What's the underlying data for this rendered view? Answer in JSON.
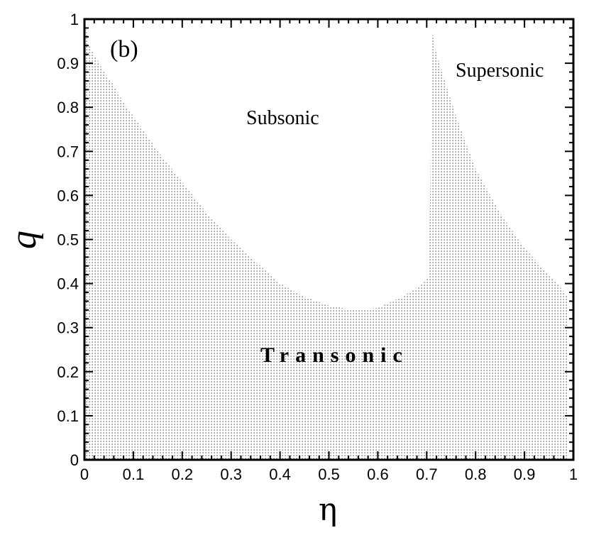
{
  "chart_data": {
    "type": "area",
    "panel_label": "(b)",
    "xlabel": "η",
    "ylabel": "q",
    "xlim": [
      0,
      1
    ],
    "ylim": [
      0,
      1
    ],
    "x_ticks": [
      "0",
      "0.1",
      "0.2",
      "0.3",
      "0.4",
      "0.5",
      "0.6",
      "0.7",
      "0.8",
      "0.9",
      "1"
    ],
    "y_ticks": [
      "0",
      "0.1",
      "0.2",
      "0.3",
      "0.4",
      "0.5",
      "0.6",
      "0.7",
      "0.8",
      "0.9",
      "1"
    ],
    "grid": false,
    "regions": {
      "subsonic": "Subsonic",
      "supersonic": "Supersonic",
      "transonic": "Transonic"
    },
    "boundary_left": {
      "x": [
        0.0,
        0.005,
        0.01,
        0.02,
        0.04,
        0.06,
        0.08,
        0.1,
        0.15,
        0.2,
        0.25,
        0.3,
        0.35,
        0.4,
        0.45,
        0.5,
        0.55,
        0.6,
        0.65,
        0.68,
        0.7,
        0.705
      ],
      "y": [
        1.0,
        0.97,
        0.94,
        0.92,
        0.88,
        0.85,
        0.81,
        0.78,
        0.7,
        0.63,
        0.56,
        0.5,
        0.45,
        0.4,
        0.37,
        0.35,
        0.34,
        0.345,
        0.37,
        0.39,
        0.41,
        0.42
      ]
    },
    "boundary_right": {
      "x": [
        0.705,
        0.708,
        0.71,
        0.715,
        0.72,
        0.74,
        0.76,
        0.8,
        0.85,
        0.9,
        0.95,
        0.99
      ],
      "y": [
        0.42,
        0.7,
        0.98,
        0.95,
        0.92,
        0.85,
        0.78,
        0.66,
        0.56,
        0.48,
        0.42,
        0.37
      ]
    }
  }
}
